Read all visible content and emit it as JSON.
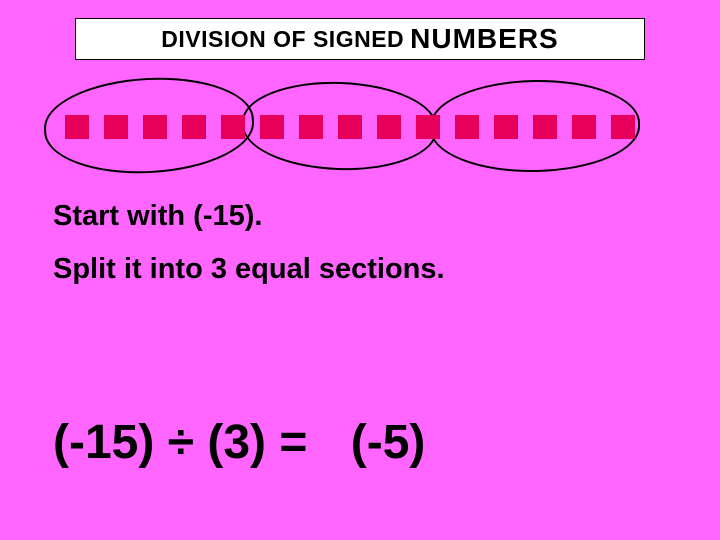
{
  "title": {
    "part1": "DIVISION OF SIGNED",
    "part2": "NUMBERS",
    "box_bg": "#ffffff",
    "box_border": "#000000",
    "part1_fontsize": 23,
    "part2_fontsize": 28
  },
  "squares": {
    "count": 15,
    "color": "#e6005c",
    "size": 24,
    "gap": 15,
    "groups": [
      {
        "start": 0,
        "end": 5
      },
      {
        "start": 5,
        "end": 10
      },
      {
        "start": 10,
        "end": 15
      }
    ]
  },
  "circles": {
    "border_color": "#000000",
    "border_width": 2
  },
  "instructions": {
    "line1": "Start with (-15).",
    "line2": "Split it into 3 equal sections.",
    "fontsize": 29,
    "color": "#000000"
  },
  "equation": {
    "left": "(-15) ÷ (3) =",
    "result": "(-5)",
    "fontsize": 48,
    "color": "#000000"
  },
  "background_color": "#ff66ff"
}
